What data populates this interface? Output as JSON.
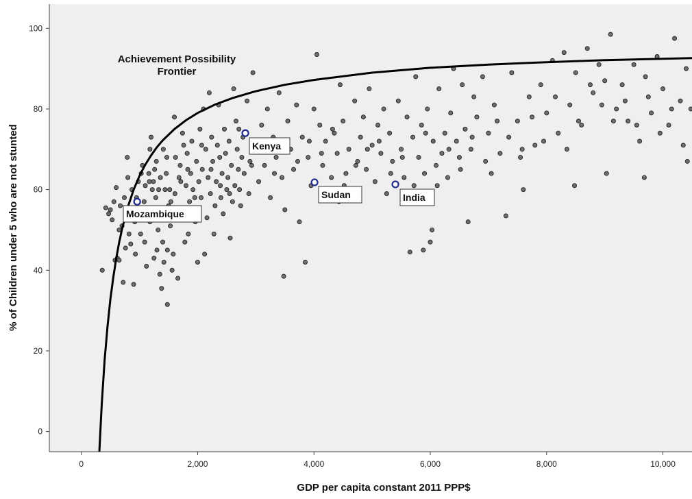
{
  "chart_data": {
    "type": "scatter",
    "title": "",
    "xlabel": "GDP per capita constant 2011 PPP$",
    "ylabel": "% of Children under 5 who are not stunted",
    "xlim": [
      -550,
      10500
    ],
    "ylim": [
      -5,
      106
    ],
    "x_ticks": [
      0,
      2000,
      4000,
      6000,
      8000,
      10000
    ],
    "x_tick_labels": [
      "0",
      "2,000",
      "4,000",
      "6,000",
      "8,000",
      "10,000"
    ],
    "y_ticks": [
      0,
      20,
      40,
      60,
      80,
      100
    ],
    "y_tick_labels": [
      "0",
      "20",
      "40",
      "60",
      "80",
      "100"
    ],
    "grid": false,
    "colors": {
      "plot_background": "#efefef",
      "point_fill": "#6e6e6e",
      "point_stroke": "#2a2a2a",
      "highlight_stroke": "#1f2a8a",
      "frontier": "#000000"
    },
    "frontier": {
      "label_lines": [
        "Achievement Possibility",
        "Frontier"
      ],
      "x": [
        310,
        350,
        400,
        450,
        500,
        550,
        600,
        650,
        700,
        800,
        900,
        1000,
        1100,
        1200,
        1300,
        1400,
        1600,
        1800,
        2000,
        2300,
        2600,
        3000,
        3500,
        4000,
        5000,
        6000,
        7000,
        8000,
        9000,
        10500
      ],
      "y": [
        -5.0,
        6.5,
        17.5,
        26.0,
        32.8,
        38.3,
        42.9,
        46.9,
        50.2,
        55.7,
        60.0,
        63.4,
        66.2,
        68.5,
        70.5,
        72.2,
        75.0,
        77.2,
        79.0,
        81.1,
        82.7,
        84.4,
        86.0,
        87.2,
        89.0,
        90.2,
        91.0,
        91.6,
        92.1,
        92.6
      ]
    },
    "highlighted": [
      {
        "name": "Mozambique",
        "x": 960,
        "y": 57
      },
      {
        "name": "Kenya",
        "x": 2820,
        "y": 74
      },
      {
        "name": "Sudan",
        "x": 4010,
        "y": 61.8
      },
      {
        "name": "India",
        "x": 5400,
        "y": 61.3
      }
    ],
    "points": [
      [
        360,
        40
      ],
      [
        420,
        55.5
      ],
      [
        470,
        54
      ],
      [
        500,
        55
      ],
      [
        530,
        52.5
      ],
      [
        560,
        57
      ],
      [
        580,
        42.5
      ],
      [
        600,
        60.5
      ],
      [
        620,
        43
      ],
      [
        650,
        42.5
      ],
      [
        670,
        56
      ],
      [
        700,
        51
      ],
      [
        720,
        37
      ],
      [
        740,
        58
      ],
      [
        760,
        45.5
      ],
      [
        790,
        68
      ],
      [
        800,
        63
      ],
      [
        820,
        49
      ],
      [
        850,
        46.5
      ],
      [
        870,
        60
      ],
      [
        900,
        36.5
      ],
      [
        920,
        52
      ],
      [
        950,
        58
      ],
      [
        980,
        62
      ],
      [
        1000,
        53
      ],
      [
        1020,
        49
      ],
      [
        1050,
        66
      ],
      [
        1080,
        57
      ],
      [
        1100,
        61
      ],
      [
        1120,
        41
      ],
      [
        1140,
        55
      ],
      [
        1160,
        64
      ],
      [
        1180,
        70
      ],
      [
        1200,
        73
      ],
      [
        1220,
        60
      ],
      [
        1240,
        62
      ],
      [
        1260,
        65
      ],
      [
        1280,
        58
      ],
      [
        1300,
        45
      ],
      [
        1320,
        50
      ],
      [
        1340,
        55
      ],
      [
        1360,
        63
      ],
      [
        1380,
        35.5
      ],
      [
        1400,
        47
      ],
      [
        1420,
        42
      ],
      [
        1440,
        60
      ],
      [
        1460,
        64
      ],
      [
        1480,
        31.5
      ],
      [
        1500,
        56
      ],
      [
        1520,
        60
      ],
      [
        1540,
        57
      ],
      [
        1560,
        40
      ],
      [
        1580,
        44
      ],
      [
        1600,
        78
      ],
      [
        1620,
        68
      ],
      [
        1640,
        53
      ],
      [
        1660,
        38
      ],
      [
        1680,
        63
      ],
      [
        1700,
        66
      ],
      [
        1720,
        55
      ],
      [
        1740,
        74
      ],
      [
        1760,
        71
      ],
      [
        1780,
        47
      ],
      [
        1800,
        61
      ],
      [
        1820,
        69
      ],
      [
        1840,
        49
      ],
      [
        1860,
        57
      ],
      [
        1880,
        64
      ],
      [
        1900,
        72
      ],
      [
        1920,
        60
      ],
      [
        1940,
        55
      ],
      [
        1960,
        52
      ],
      [
        1980,
        67
      ],
      [
        2000,
        42
      ],
      [
        2020,
        62
      ],
      [
        2040,
        75
      ],
      [
        2060,
        58
      ],
      [
        2080,
        65
      ],
      [
        2100,
        80
      ],
      [
        2120,
        44
      ],
      [
        2140,
        70
      ],
      [
        2160,
        53
      ],
      [
        2180,
        63
      ],
      [
        2200,
        84
      ],
      [
        2220,
        59
      ],
      [
        2240,
        73
      ],
      [
        2260,
        67
      ],
      [
        2280,
        49
      ],
      [
        2300,
        56
      ],
      [
        2320,
        62
      ],
      [
        2340,
        71
      ],
      [
        2360,
        81
      ],
      [
        2380,
        68
      ],
      [
        2400,
        58
      ],
      [
        2420,
        64
      ],
      [
        2440,
        54
      ],
      [
        2460,
        75
      ],
      [
        2480,
        69
      ],
      [
        2500,
        60
      ],
      [
        2520,
        63
      ],
      [
        2540,
        72
      ],
      [
        2560,
        48
      ],
      [
        2580,
        66
      ],
      [
        2600,
        57
      ],
      [
        2620,
        85
      ],
      [
        2640,
        61
      ],
      [
        2660,
        77
      ],
      [
        2680,
        70
      ],
      [
        2700,
        65
      ],
      [
        2720,
        60
      ],
      [
        2740,
        56
      ],
      [
        2760,
        68
      ],
      [
        2780,
        73
      ],
      [
        2800,
        64
      ],
      [
        2850,
        82
      ],
      [
        2880,
        59
      ],
      [
        2900,
        67
      ],
      [
        2950,
        89
      ],
      [
        3000,
        71
      ],
      [
        3050,
        62
      ],
      [
        3100,
        76
      ],
      [
        3150,
        66
      ],
      [
        3200,
        80
      ],
      [
        3250,
        58
      ],
      [
        3300,
        73
      ],
      [
        3350,
        68
      ],
      [
        3400,
        84
      ],
      [
        3450,
        63
      ],
      [
        3500,
        55
      ],
      [
        3550,
        77
      ],
      [
        3600,
        70
      ],
      [
        3650,
        65
      ],
      [
        3700,
        81
      ],
      [
        3750,
        52
      ],
      [
        3800,
        73
      ],
      [
        3850,
        42
      ],
      [
        3900,
        68
      ],
      [
        3950,
        61
      ],
      [
        4000,
        80
      ],
      [
        4050,
        93.5
      ],
      [
        4100,
        76
      ],
      [
        4150,
        66
      ],
      [
        4200,
        72
      ],
      [
        4250,
        58
      ],
      [
        4300,
        63
      ],
      [
        4350,
        74
      ],
      [
        4400,
        69
      ],
      [
        4450,
        86
      ],
      [
        4500,
        77
      ],
      [
        4550,
        64
      ],
      [
        4600,
        70
      ],
      [
        4650,
        60
      ],
      [
        4700,
        82
      ],
      [
        4750,
        67
      ],
      [
        4800,
        73
      ],
      [
        4850,
        78
      ],
      [
        4900,
        65
      ],
      [
        4950,
        85
      ],
      [
        5000,
        71
      ],
      [
        5050,
        62
      ],
      [
        5100,
        76
      ],
      [
        5150,
        69
      ],
      [
        5200,
        80
      ],
      [
        5250,
        59
      ],
      [
        5300,
        74
      ],
      [
        5350,
        67
      ],
      [
        5450,
        82
      ],
      [
        5500,
        70
      ],
      [
        5550,
        63
      ],
      [
        5600,
        78
      ],
      [
        5650,
        44.5
      ],
      [
        5700,
        73
      ],
      [
        5750,
        88
      ],
      [
        5800,
        68
      ],
      [
        5850,
        76
      ],
      [
        5900,
        64
      ],
      [
        5950,
        80
      ],
      [
        6000,
        47
      ],
      [
        6050,
        72
      ],
      [
        6100,
        66
      ],
      [
        6150,
        85
      ],
      [
        6200,
        69
      ],
      [
        6250,
        74
      ],
      [
        6300,
        63
      ],
      [
        6350,
        79
      ],
      [
        6400,
        90
      ],
      [
        6450,
        72
      ],
      [
        6500,
        68
      ],
      [
        6550,
        86
      ],
      [
        6600,
        75
      ],
      [
        6650,
        52
      ],
      [
        6700,
        70
      ],
      [
        6750,
        83
      ],
      [
        6800,
        78
      ],
      [
        6900,
        88
      ],
      [
        7000,
        74
      ],
      [
        7100,
        81
      ],
      [
        7200,
        69
      ],
      [
        7300,
        53.5
      ],
      [
        7400,
        89
      ],
      [
        7500,
        77
      ],
      [
        7600,
        60
      ],
      [
        7700,
        83
      ],
      [
        7800,
        71
      ],
      [
        7900,
        86
      ],
      [
        8000,
        79
      ],
      [
        8100,
        92
      ],
      [
        8200,
        74
      ],
      [
        8300,
        94
      ],
      [
        8400,
        81
      ],
      [
        8500,
        89
      ],
      [
        8600,
        76
      ],
      [
        8700,
        95
      ],
      [
        8800,
        84
      ],
      [
        8900,
        91
      ],
      [
        9000,
        87
      ],
      [
        9100,
        98.5
      ],
      [
        9200,
        80
      ],
      [
        9300,
        86
      ],
      [
        9400,
        77
      ],
      [
        9500,
        91
      ],
      [
        9600,
        72
      ],
      [
        9700,
        88
      ],
      [
        9800,
        79
      ],
      [
        9900,
        93
      ],
      [
        10000,
        85
      ],
      [
        10100,
        76
      ],
      [
        10200,
        97.5
      ],
      [
        10300,
        82
      ],
      [
        10400,
        90
      ],
      [
        10480,
        80
      ],
      [
        650,
        50
      ],
      [
        880,
        54
      ],
      [
        1030,
        64
      ],
      [
        1170,
        62
      ],
      [
        1290,
        67
      ],
      [
        1330,
        60
      ],
      [
        1410,
        70
      ],
      [
        1470,
        68
      ],
      [
        1530,
        51
      ],
      [
        1610,
        59
      ],
      [
        1710,
        62
      ],
      [
        1830,
        65
      ],
      [
        1950,
        58
      ],
      [
        2070,
        71
      ],
      [
        2230,
        65
      ],
      [
        2390,
        61
      ],
      [
        2550,
        59
      ],
      [
        2710,
        75
      ],
      [
        2930,
        66
      ],
      [
        3120,
        70
      ],
      [
        3320,
        64
      ],
      [
        3520,
        71
      ],
      [
        3720,
        67
      ],
      [
        3920,
        72
      ],
      [
        4130,
        69
      ],
      [
        4320,
        75
      ],
      [
        4520,
        61
      ],
      [
        4720,
        66
      ],
      [
        4920,
        70
      ],
      [
        5120,
        72
      ],
      [
        5320,
        64
      ],
      [
        5520,
        68
      ],
      [
        5720,
        61
      ],
      [
        5920,
        74
      ],
      [
        6120,
        61
      ],
      [
        6320,
        70
      ],
      [
        6520,
        65
      ],
      [
        6720,
        73
      ],
      [
        6950,
        67
      ],
      [
        7150,
        77
      ],
      [
        7350,
        73
      ],
      [
        7550,
        68
      ],
      [
        7750,
        78
      ],
      [
        7950,
        72
      ],
      [
        8150,
        83
      ],
      [
        8350,
        70
      ],
      [
        8550,
        77
      ],
      [
        8750,
        86
      ],
      [
        8950,
        81
      ],
      [
        9150,
        77
      ],
      [
        9350,
        82
      ],
      [
        9550,
        76
      ],
      [
        9750,
        83
      ],
      [
        9950,
        74
      ],
      [
        10150,
        80
      ],
      [
        10350,
        71
      ],
      [
        3480,
        38.5
      ],
      [
        5880,
        45
      ],
      [
        6030,
        50
      ],
      [
        9030,
        64
      ],
      [
        8480,
        61
      ],
      [
        7580,
        70
      ],
      [
        9680,
        63
      ],
      [
        10420,
        67
      ],
      [
        7050,
        64
      ],
      [
        4430,
        57
      ],
      [
        1090,
        47
      ],
      [
        1250,
        43
      ],
      [
        1350,
        39
      ],
      [
        930,
        44
      ],
      [
        1180,
        52
      ],
      [
        1480,
        45
      ]
    ]
  }
}
